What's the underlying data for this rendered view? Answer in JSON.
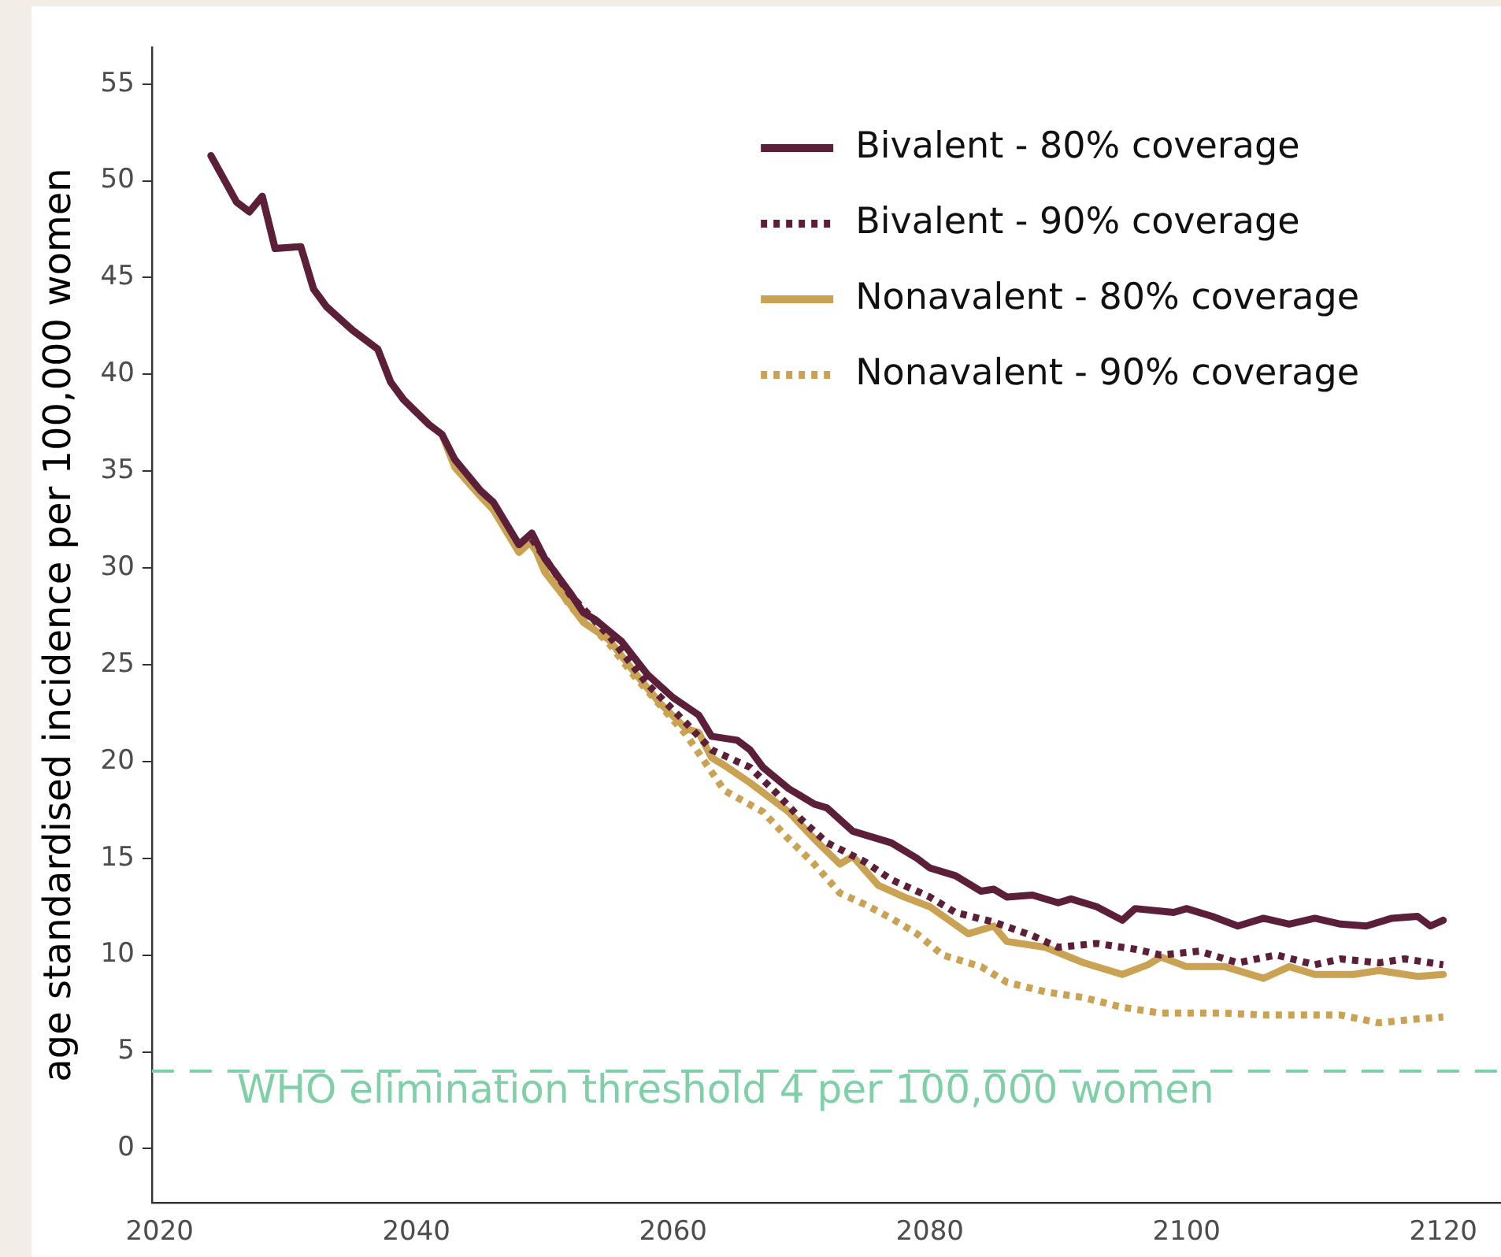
{
  "chart_data": {
    "type": "line",
    "ylabel": "age standardised incidence per 100,000 women",
    "xlim": [
      2019.4,
      2124.5
    ],
    "xticks": [
      2020,
      2040,
      2060,
      2080,
      2100,
      2120
    ],
    "ylim": [
      -2.8,
      56.9
    ],
    "yticks": [
      0,
      5,
      10,
      15,
      20,
      25,
      30,
      35,
      40,
      45,
      50,
      55
    ],
    "legend": "top right",
    "marker": "none",
    "series": [
      {
        "name": "Bivalent - 80% coverage",
        "color": "#5c1f3a",
        "line_style": "solid",
        "x": [
          2024,
          2026,
          2027,
          2028,
          2029,
          2031,
          2032,
          2033,
          2034,
          2035,
          2037,
          2038,
          2039,
          2041,
          2042,
          2043,
          2045,
          2046,
          2048,
          2049,
          2050,
          2052,
          2053,
          2054,
          2056,
          2058,
          2060,
          2062,
          2063,
          2065,
          2066,
          2067,
          2069,
          2071,
          2072,
          2074,
          2077,
          2079,
          2080,
          2082,
          2084,
          2085,
          2086,
          2088,
          2090,
          2091,
          2093,
          2095,
          2096,
          2099,
          2100,
          2102,
          2104,
          2106,
          2108,
          2110,
          2112,
          2114,
          2116,
          2118,
          2119,
          2120
        ],
        "values": [
          51.3,
          48.9,
          48.4,
          49.2,
          46.5,
          46.6,
          44.4,
          43.5,
          42.9,
          42.3,
          41.3,
          39.6,
          38.7,
          37.4,
          36.9,
          35.6,
          34.0,
          33.4,
          31.2,
          31.8,
          30.5,
          28.7,
          27.7,
          27.3,
          26.2,
          24.5,
          23.3,
          22.4,
          21.3,
          21.1,
          20.6,
          19.7,
          18.6,
          17.8,
          17.6,
          16.4,
          15.8,
          15.0,
          14.5,
          14.1,
          13.3,
          13.4,
          13.0,
          13.1,
          12.7,
          12.9,
          12.5,
          11.8,
          12.4,
          12.2,
          12.4,
          12.0,
          11.5,
          11.9,
          11.6,
          11.9,
          11.6,
          11.5,
          11.9,
          12.0,
          11.5,
          11.8
        ]
      },
      {
        "name": "Bivalent - 90% coverage",
        "color": "#5c1f3a",
        "line_style": "dotted",
        "x": [
          2049,
          2052,
          2055,
          2058,
          2061,
          2063,
          2066,
          2068,
          2070,
          2072,
          2075,
          2077,
          2080,
          2082,
          2085,
          2088,
          2090,
          2093,
          2096,
          2098,
          2101,
          2104,
          2107,
          2110,
          2112,
          2115,
          2117,
          2120
        ],
        "values": [
          31.5,
          28.6,
          26.5,
          24.0,
          22.0,
          20.6,
          19.7,
          18.4,
          17.0,
          15.8,
          14.8,
          13.9,
          13.0,
          12.2,
          11.7,
          11.0,
          10.4,
          10.6,
          10.3,
          10.0,
          10.2,
          9.6,
          10.0,
          9.5,
          9.8,
          9.6,
          9.8,
          9.5
        ]
      },
      {
        "name": "Nonavalent - 80% coverage",
        "color": "#c9a253",
        "line_style": "solid",
        "x": [
          2024,
          2026,
          2027,
          2028,
          2029,
          2031,
          2032,
          2033,
          2034,
          2035,
          2037,
          2038,
          2039,
          2041,
          2042,
          2043,
          2045,
          2046,
          2048,
          2049,
          2050,
          2052,
          2053,
          2055,
          2057,
          2059,
          2061,
          2062,
          2063,
          2064,
          2066,
          2069,
          2071,
          2073,
          2074,
          2076,
          2078,
          2080,
          2083,
          2085,
          2086,
          2089,
          2092,
          2095,
          2097,
          2098,
          2100,
          2103,
          2106,
          2108,
          2110,
          2113,
          2115,
          2118,
          2120
        ],
        "values": [
          51.3,
          48.9,
          48.4,
          49.2,
          46.5,
          46.6,
          44.4,
          43.5,
          42.9,
          42.3,
          41.3,
          39.6,
          38.7,
          37.4,
          36.9,
          35.2,
          33.7,
          33.0,
          30.8,
          31.4,
          29.8,
          28.1,
          27.2,
          26.3,
          24.6,
          23.0,
          21.7,
          21.5,
          20.2,
          19.8,
          18.9,
          17.4,
          16.0,
          14.7,
          15.1,
          13.6,
          13.0,
          12.5,
          11.1,
          11.5,
          10.7,
          10.4,
          9.6,
          9.0,
          9.5,
          9.9,
          9.4,
          9.4,
          8.8,
          9.4,
          9.0,
          9.0,
          9.2,
          8.9,
          9.0
        ]
      },
      {
        "name": "Nonavalent - 90% coverage",
        "color": "#c9a253",
        "line_style": "dotted",
        "x": [
          2049,
          2052,
          2055,
          2057,
          2059,
          2061,
          2064,
          2067,
          2069,
          2071,
          2073,
          2075,
          2077,
          2079,
          2081,
          2084,
          2086,
          2089,
          2092,
          2095,
          2098,
          2101,
          2103,
          2106,
          2109,
          2112,
          2115,
          2118,
          2120
        ],
        "values": [
          31.2,
          28.0,
          26.1,
          24.4,
          22.9,
          21.4,
          18.5,
          17.4,
          16.0,
          14.7,
          13.2,
          12.6,
          11.9,
          11.1,
          10.0,
          9.4,
          8.6,
          8.1,
          7.8,
          7.3,
          7.0,
          7.0,
          7.0,
          6.9,
          6.9,
          6.9,
          6.5,
          6.7,
          6.8
        ]
      }
    ],
    "ref_lines": [
      {
        "axis": "y",
        "value": 4,
        "label": "WHO elimination threshold 4 per 100,000 women",
        "color": "#7fcfa8",
        "line_style": "dashed"
      }
    ]
  }
}
